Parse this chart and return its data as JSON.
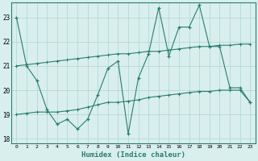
{
  "xlabel": "Humidex (Indice chaleur)",
  "x_values": [
    0,
    1,
    2,
    3,
    4,
    5,
    6,
    7,
    8,
    9,
    10,
    11,
    12,
    13,
    14,
    15,
    16,
    17,
    18,
    19,
    20,
    21,
    22,
    23
  ],
  "line1_y": [
    23.0,
    21.0,
    20.4,
    19.2,
    18.6,
    18.8,
    18.4,
    18.8,
    19.8,
    20.9,
    21.2,
    18.2,
    20.5,
    21.5,
    23.4,
    21.4,
    22.6,
    22.6,
    23.5,
    21.8,
    21.8,
    20.1,
    20.1,
    19.5
  ],
  "line2_y": [
    21.0,
    21.05,
    21.1,
    21.15,
    21.2,
    21.25,
    21.3,
    21.35,
    21.4,
    21.45,
    21.5,
    21.5,
    21.55,
    21.6,
    21.6,
    21.65,
    21.7,
    21.75,
    21.8,
    21.8,
    21.85,
    21.85,
    21.9,
    21.9
  ],
  "line3_y": [
    19.0,
    19.05,
    19.1,
    19.1,
    19.1,
    19.15,
    19.2,
    19.3,
    19.4,
    19.5,
    19.5,
    19.55,
    19.6,
    19.7,
    19.75,
    19.8,
    19.85,
    19.9,
    19.95,
    19.95,
    20.0,
    20.0,
    20.0,
    19.5
  ],
  "line_color": "#2a7d6e",
  "bg_color": "#d8efed",
  "grid_color": "#aed4cf",
  "ylim": [
    17.8,
    23.6
  ],
  "yticks": [
    18,
    19,
    20,
    21,
    22,
    23
  ],
  "xlim": [
    -0.5,
    23.5
  ],
  "xticks": [
    0,
    1,
    2,
    3,
    4,
    5,
    6,
    7,
    8,
    9,
    10,
    11,
    12,
    13,
    14,
    15,
    16,
    17,
    18,
    19,
    20,
    21,
    22,
    23
  ]
}
